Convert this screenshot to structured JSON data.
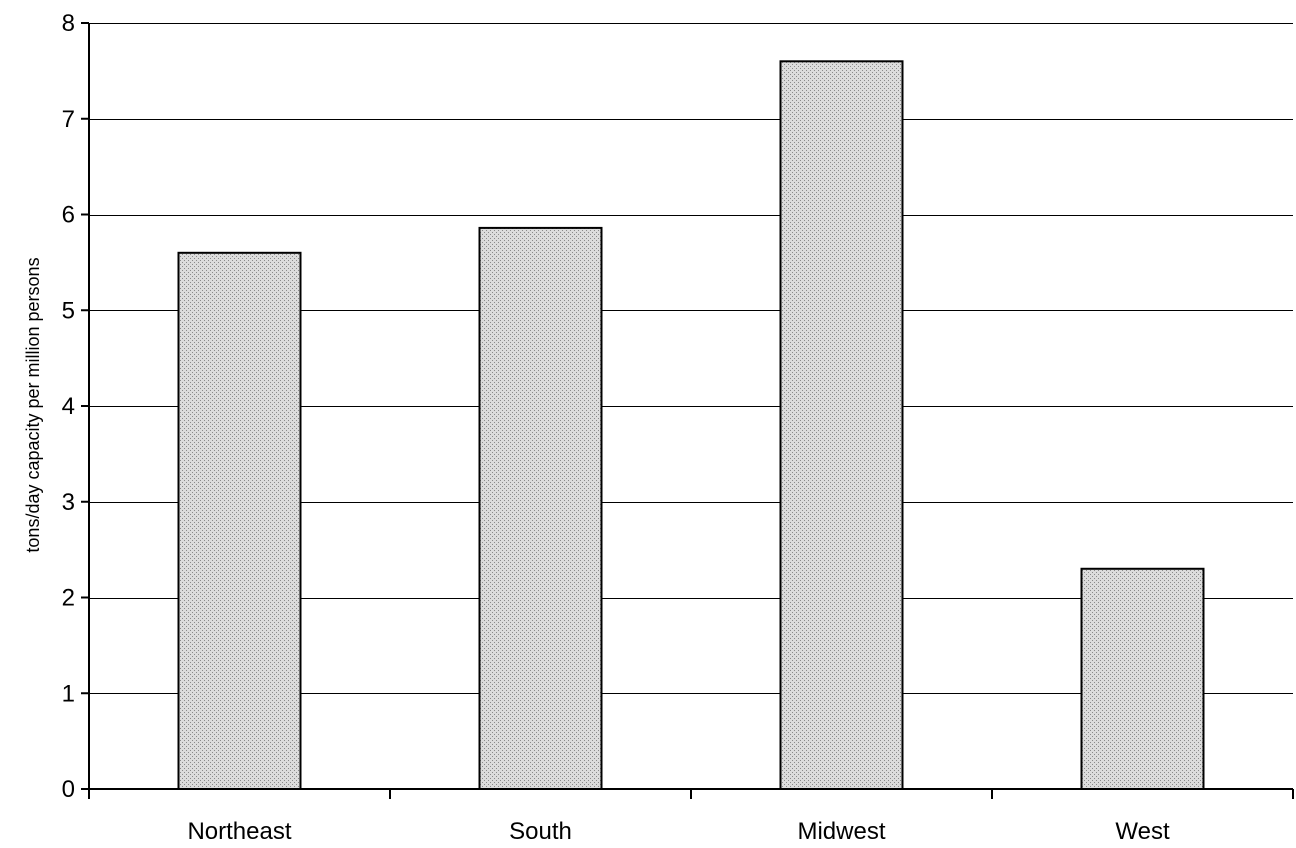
{
  "chart_data": {
    "type": "bar",
    "title": "",
    "xlabel": "",
    "ylabel": "tons/day capacity per million persons",
    "categories": [
      "Northeast",
      "South",
      "Midwest",
      "West"
    ],
    "values": [
      5.6,
      5.86,
      7.6,
      2.3
    ],
    "ylim": [
      0,
      8
    ],
    "yticks": [
      "0",
      "1",
      "2",
      "3",
      "4",
      "5",
      "6",
      "7",
      "8"
    ],
    "grid": true,
    "legend": "none",
    "colors": {
      "bar_fill": "#dcdcdc",
      "bar_dot": "#8a8a8a",
      "bar_stroke": "#000000",
      "axis": "#000000",
      "grid": "#000000",
      "background": "#ffffff"
    }
  }
}
